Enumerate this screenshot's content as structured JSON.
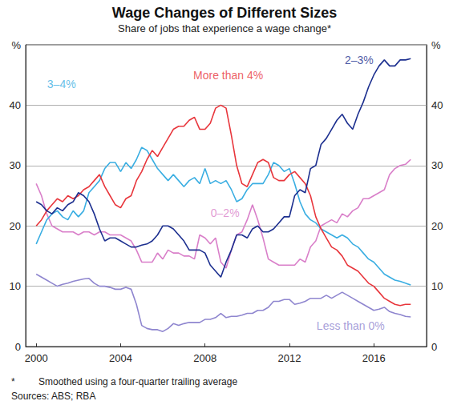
{
  "chart_data": {
    "type": "line",
    "title": "Wage Changes of Different Sizes",
    "subtitle": "Share of jobs that experience a wage change*",
    "footnote_mark": "*",
    "footnote": "Smoothed using a four-quarter trailing average",
    "source": "Sources: ABS; RBA",
    "grid": true,
    "xlim": [
      1999.5,
      2018.5
    ],
    "xticks": [
      2000,
      2004,
      2008,
      2012,
      2016
    ],
    "ylim": [
      0,
      50
    ],
    "yticks": [
      0,
      10,
      20,
      30,
      40,
      {
        "value": 50,
        "label": "%"
      }
    ],
    "x": [
      2000,
      2000.25,
      2000.5,
      2000.75,
      2001,
      2001.25,
      2001.5,
      2001.75,
      2002,
      2002.25,
      2002.5,
      2002.75,
      2003,
      2003.25,
      2003.5,
      2003.75,
      2004,
      2004.25,
      2004.5,
      2004.75,
      2005,
      2005.25,
      2005.5,
      2005.75,
      2006,
      2006.25,
      2006.5,
      2006.75,
      2007,
      2007.25,
      2007.5,
      2007.75,
      2008,
      2008.25,
      2008.5,
      2008.75,
      2009,
      2009.25,
      2009.5,
      2009.75,
      2010,
      2010.25,
      2010.5,
      2010.75,
      2011,
      2011.25,
      2011.5,
      2011.75,
      2012,
      2012.25,
      2012.5,
      2012.75,
      2013,
      2013.25,
      2013.5,
      2013.75,
      2014,
      2014.25,
      2014.5,
      2014.75,
      2015,
      2015.25,
      2015.5,
      2015.75,
      2016,
      2016.25,
      2016.5,
      2016.75,
      2017,
      2017.25,
      2017.5,
      2017.75
    ],
    "series": [
      {
        "name": "Less than 0%",
        "color": "#8f86cf",
        "values": [
          12,
          11.5,
          11,
          10.5,
          10,
          10.3,
          10.5,
          10.8,
          11,
          11.2,
          11.3,
          10.5,
          10,
          10,
          9.8,
          9.5,
          9.5,
          9.8,
          9.5,
          7,
          3.5,
          3,
          2.8,
          2.8,
          2.5,
          3,
          3.8,
          3.5,
          3.8,
          4,
          4,
          4,
          4.5,
          4.5,
          4.8,
          5.5,
          4.8,
          5,
          5,
          5.2,
          5.5,
          5.5,
          6,
          6,
          6.5,
          7.5,
          7.5,
          7.8,
          7.8,
          7,
          7.2,
          7.5,
          8,
          8,
          8,
          8.5,
          8,
          8.5,
          9,
          8.5,
          8,
          7.5,
          7,
          6.5,
          6,
          6.2,
          6.5,
          5.8,
          5.5,
          5.3,
          5,
          4.9
        ]
      },
      {
        "name": "0–2%",
        "color": "#d97fc9",
        "values": [
          27,
          25,
          22,
          20,
          19.5,
          19,
          19,
          19,
          18.5,
          19,
          19,
          18.5,
          19,
          19,
          18.5,
          18.5,
          18.5,
          18,
          17.5,
          16,
          14,
          14,
          14,
          15.5,
          14.5,
          16,
          15.5,
          15.5,
          15,
          15,
          14.5,
          18.5,
          18,
          17,
          18,
          14,
          13,
          16,
          18.5,
          19,
          21,
          23.5,
          21,
          18,
          14.5,
          14,
          13.5,
          13.5,
          13.5,
          13.5,
          14.5,
          14,
          16.5,
          17.5,
          20,
          20.5,
          21,
          20.5,
          22,
          21.5,
          22.5,
          23,
          24.5,
          24.5,
          25,
          25.5,
          26,
          28.5,
          29.5,
          30,
          30.2,
          31
        ]
      },
      {
        "name": "3–4%",
        "color": "#3aaee2",
        "values": [
          17,
          19,
          21,
          22,
          22.5,
          21.5,
          21,
          22.5,
          21.5,
          22.5,
          25.5,
          26.5,
          27.5,
          29.5,
          30.5,
          30.5,
          29,
          30.5,
          29.5,
          31,
          33,
          32.5,
          31,
          29.5,
          28.5,
          27.5,
          28.5,
          27.5,
          26.5,
          27.5,
          28,
          27,
          29.5,
          27,
          27.5,
          27,
          27.5,
          26,
          24,
          24.5,
          26,
          27,
          27,
          27,
          28.5,
          30.5,
          30,
          29,
          29.5,
          27,
          24,
          22,
          21,
          20.5,
          19.5,
          19,
          18.5,
          18,
          18.5,
          18,
          17,
          16.5,
          15.5,
          14.5,
          14,
          13,
          12,
          11.5,
          11,
          10.8,
          10.5,
          10.2
        ]
      },
      {
        "name": "More than 4%",
        "color": "#e8363c",
        "values": [
          20,
          21,
          22.5,
          23.5,
          24.5,
          24,
          25,
          24.5,
          25,
          26,
          26.5,
          27.5,
          28.5,
          26.5,
          25,
          23.5,
          23,
          24.5,
          25,
          27.5,
          29,
          31,
          32.5,
          31.5,
          33,
          34.5,
          36,
          36.5,
          36.5,
          37.5,
          38,
          36,
          36,
          37,
          39.5,
          40,
          39.5,
          35,
          30,
          27,
          26.5,
          28.5,
          30.5,
          31,
          30.5,
          28,
          27.5,
          27.5,
          28.5,
          29,
          28,
          27,
          25,
          21.5,
          19.5,
          18,
          16.5,
          16,
          15,
          13.5,
          13,
          12.5,
          11.5,
          10.5,
          10,
          9,
          8,
          7.5,
          7,
          6.8,
          7,
          7
        ]
      },
      {
        "name": "2–3%",
        "color": "#1c2f8f",
        "values": [
          24,
          23.5,
          22.5,
          22,
          23,
          22.5,
          23.5,
          24,
          25.5,
          25,
          24,
          22,
          19.5,
          17.5,
          18,
          18,
          17.5,
          17,
          16.5,
          16.5,
          16.8,
          17,
          17.5,
          18.5,
          20,
          20,
          19.5,
          18.5,
          17.5,
          16,
          16,
          16,
          15.5,
          13.5,
          12.5,
          11.5,
          14,
          16,
          18.5,
          18.5,
          18,
          19.5,
          20,
          19,
          19,
          19.5,
          20.5,
          21.5,
          21.5,
          25,
          26,
          25.5,
          29.5,
          30,
          33.5,
          34.5,
          36,
          37.5,
          38.5,
          37,
          36,
          38.5,
          40.5,
          43,
          45,
          46.5,
          47.5,
          46.5,
          46.5,
          47.5,
          47.5,
          47.7
        ]
      }
    ],
    "annotations": [
      {
        "text": "3–4%",
        "x": 2001.2,
        "y": 43.5,
        "color": "#3aaee2"
      },
      {
        "text": "More than 4%",
        "x": 2009.1,
        "y": 45,
        "color": "#e8363c"
      },
      {
        "text": "2–3%",
        "x": 2015.3,
        "y": 47.5,
        "color": "#1c2f8f"
      },
      {
        "text": "0–2%",
        "x": 2008.95,
        "y": 22.2,
        "color": "#d97fc9"
      },
      {
        "text": "Less than 0%",
        "x": 2014.9,
        "y": 3.5,
        "color": "#8f86cf"
      }
    ]
  }
}
